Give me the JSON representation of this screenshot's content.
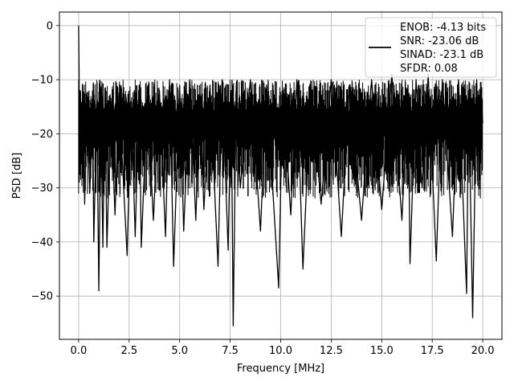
{
  "chart_data": {
    "type": "line",
    "title": "",
    "xlabel": "Frequency [MHz]",
    "ylabel": "PSD [dB]",
    "xlim": [
      -0.95,
      20.95
    ],
    "ylim": [
      -58,
      2.5
    ],
    "grid": true,
    "legend_placement": "top-right",
    "x_ticks": [
      "0.0",
      "2.5",
      "5.0",
      "7.5",
      "10.0",
      "12.5",
      "15.0",
      "17.5",
      "20.0"
    ],
    "y_ticks": [
      "0",
      "−10",
      "−20",
      "−30",
      "−40",
      "−50"
    ],
    "legend_entries": [
      "ENOB: -4.13 bits",
      "SNR: -23.06 dB",
      "SINAD: -23.1 dB",
      "SFDR: 0.08"
    ],
    "series": [
      {
        "color": "#000000",
        "points": [
          [
            0.0,
            0.0
          ],
          [
            0.02,
            -8
          ],
          [
            0.05,
            -27.5
          ],
          [
            0.08,
            -12
          ],
          [
            0.12,
            -25
          ],
          [
            0.2,
            -11
          ],
          [
            0.3,
            -33
          ],
          [
            0.4,
            -13
          ],
          [
            0.55,
            -31
          ],
          [
            0.7,
            -16
          ],
          [
            0.75,
            -40
          ],
          [
            0.9,
            -14
          ],
          [
            1.0,
            -49
          ],
          [
            1.1,
            -15
          ],
          [
            1.2,
            -41
          ],
          [
            1.3,
            -12
          ],
          [
            1.4,
            -41
          ],
          [
            1.6,
            -14
          ],
          [
            1.8,
            -35
          ],
          [
            2.0,
            -13
          ],
          [
            2.4,
            -42.5
          ],
          [
            2.6,
            -14
          ],
          [
            2.8,
            -39
          ],
          [
            3.0,
            -11
          ],
          [
            3.1,
            -41
          ],
          [
            3.4,
            -13
          ],
          [
            3.7,
            -36
          ],
          [
            4.0,
            -12
          ],
          [
            4.3,
            -39
          ],
          [
            4.5,
            -10
          ],
          [
            4.7,
            -44.5
          ],
          [
            5.0,
            -11
          ],
          [
            5.2,
            -38
          ],
          [
            5.5,
            -10
          ],
          [
            5.8,
            -36
          ],
          [
            6.0,
            -13
          ],
          [
            6.2,
            -34
          ],
          [
            6.5,
            -11
          ],
          [
            6.9,
            -44.5
          ],
          [
            7.1,
            -10
          ],
          [
            7.4,
            -41.5
          ],
          [
            7.55,
            -12
          ],
          [
            7.65,
            -55.5
          ],
          [
            7.8,
            -11
          ],
          [
            8.0,
            -30
          ],
          [
            8.5,
            -10
          ],
          [
            9.0,
            -38
          ],
          [
            9.3,
            -11
          ],
          [
            9.9,
            -48.5
          ],
          [
            10.1,
            -12
          ],
          [
            10.5,
            -35
          ],
          [
            10.8,
            -10
          ],
          [
            11.1,
            -45
          ],
          [
            11.5,
            -11
          ],
          [
            12.0,
            -33
          ],
          [
            12.5,
            -10
          ],
          [
            13.0,
            -39
          ],
          [
            13.4,
            -11
          ],
          [
            14.0,
            -36
          ],
          [
            14.5,
            -10
          ],
          [
            15.0,
            -34
          ],
          [
            15.5,
            -9
          ],
          [
            16.0,
            -36
          ],
          [
            16.3,
            -11
          ],
          [
            16.4,
            -44
          ],
          [
            16.7,
            -10
          ],
          [
            17.0,
            -30
          ],
          [
            17.3,
            -9
          ],
          [
            17.7,
            -43.5
          ],
          [
            18.0,
            -10
          ],
          [
            18.5,
            -39
          ],
          [
            18.8,
            -10
          ],
          [
            19.2,
            -49.5
          ],
          [
            19.3,
            -12
          ],
          [
            19.5,
            -54
          ],
          [
            19.7,
            -10
          ],
          [
            19.8,
            -25
          ],
          [
            19.9,
            -11
          ],
          [
            20.0,
            -18
          ]
        ]
      }
    ]
  }
}
